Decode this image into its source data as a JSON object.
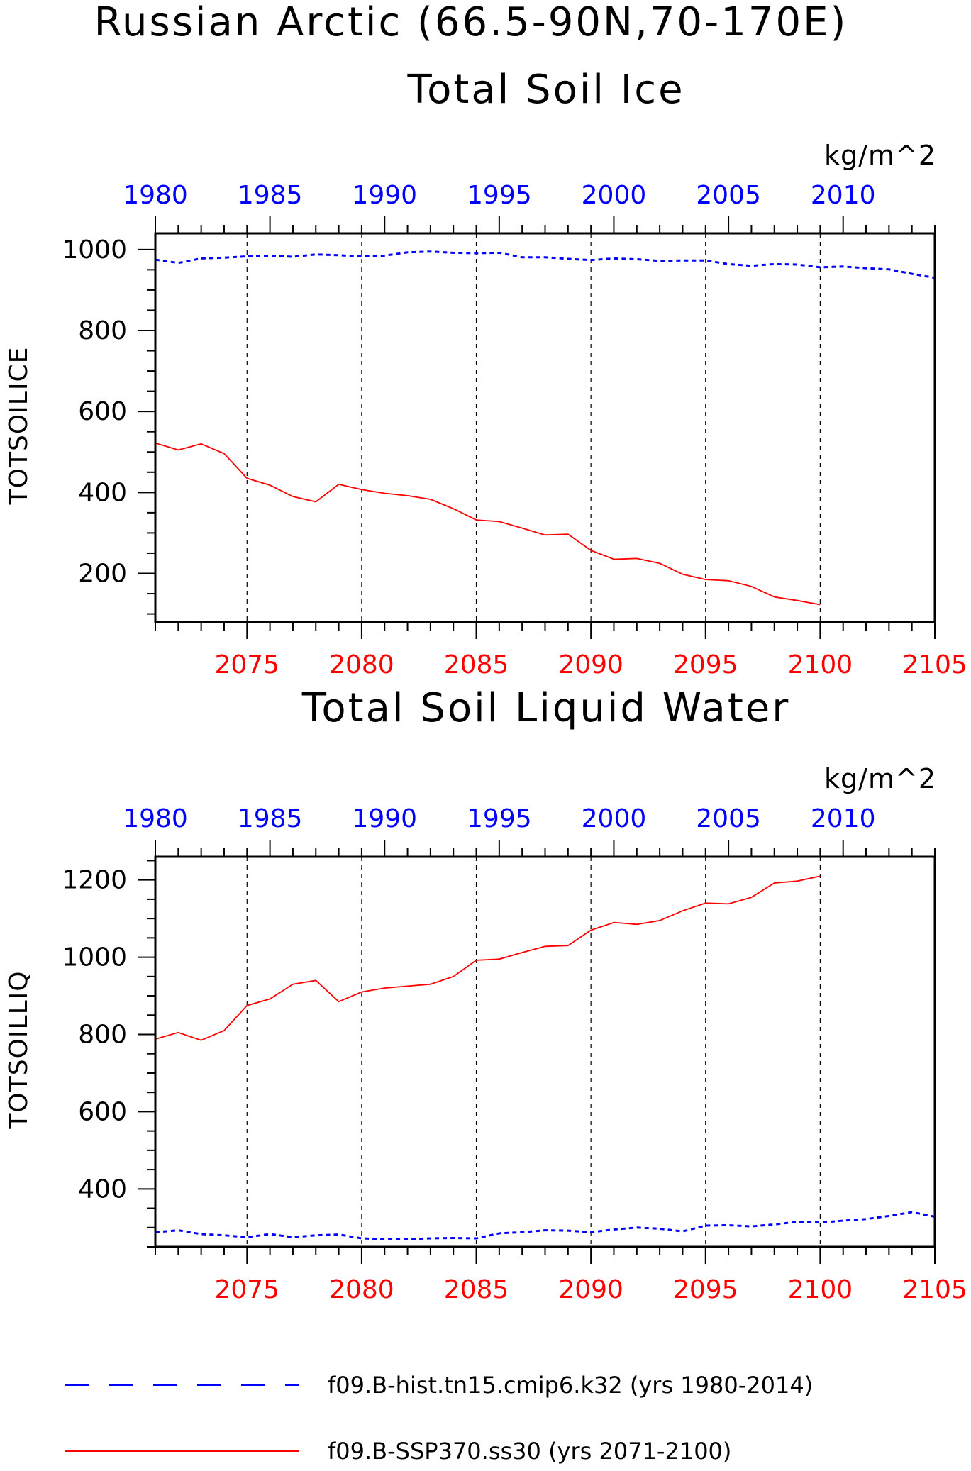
{
  "title_line1": "Russian Arctic (66.5-90N,70-170E)",
  "colors": {
    "hist": "#0000ff",
    "ssp": "#ff0000",
    "axis": "#000000",
    "grid": "#000000"
  },
  "legend": [
    {
      "label": "f09.B-hist.tn15.cmip6.k32 (yrs 1980-2014)",
      "color": "#0000ff",
      "style": "dashed"
    },
    {
      "label": "f09.B-SSP370.ss30 (yrs 2071-2100)",
      "color": "#ff0000",
      "style": "solid"
    }
  ],
  "chart_data": [
    {
      "type": "line",
      "title": "Total Soil Ice",
      "ylabel": "TOTSOILICE",
      "unit": "kg/m^2",
      "ylim": [
        80,
        1040
      ],
      "yticks": [
        200,
        400,
        600,
        800,
        1000
      ],
      "top_axis": {
        "range": [
          1980,
          2014
        ],
        "ticks": [
          1980,
          1985,
          1990,
          1995,
          2000,
          2005,
          2010
        ],
        "color": "#0000ff"
      },
      "bottom_axis": {
        "range": [
          2071,
          2105
        ],
        "ticks": [
          2075,
          2080,
          2085,
          2090,
          2095,
          2100,
          2105
        ],
        "color": "#ff0000"
      },
      "grid": "vertical dashed at bottom-axis ticks 2075-2100",
      "series": [
        {
          "name": "f09.B-hist.tn15.cmip6.k32",
          "axis": "top",
          "x": [
            1980,
            1981,
            1982,
            1983,
            1984,
            1985,
            1986,
            1987,
            1988,
            1989,
            1990,
            1991,
            1992,
            1993,
            1994,
            1995,
            1996,
            1997,
            1998,
            1999,
            2000,
            2001,
            2002,
            2003,
            2004,
            2005,
            2006,
            2007,
            2008,
            2009,
            2010,
            2011,
            2012,
            2013,
            2014
          ],
          "values": [
            975,
            967,
            978,
            980,
            983,
            985,
            982,
            988,
            986,
            983,
            985,
            993,
            995,
            992,
            991,
            992,
            981,
            981,
            977,
            974,
            978,
            976,
            972,
            973,
            973,
            964,
            960,
            964,
            963,
            956,
            958,
            954,
            951,
            940,
            930
          ]
        },
        {
          "name": "f09.B-SSP370.ss30",
          "axis": "bottom",
          "x": [
            2071,
            2072,
            2073,
            2074,
            2075,
            2076,
            2077,
            2078,
            2079,
            2080,
            2081,
            2082,
            2083,
            2084,
            2085,
            2086,
            2087,
            2088,
            2089,
            2090,
            2091,
            2092,
            2093,
            2094,
            2095,
            2096,
            2097,
            2098,
            2099,
            2100
          ],
          "values": [
            522,
            505,
            520,
            496,
            435,
            418,
            390,
            377,
            420,
            407,
            398,
            392,
            383,
            360,
            332,
            328,
            312,
            295,
            297,
            257,
            235,
            237,
            225,
            198,
            185,
            182,
            168,
            142,
            133,
            123
          ]
        }
      ]
    },
    {
      "type": "line",
      "title": "Total Soil Liquid Water",
      "ylabel": "TOTSOILLIQ",
      "unit": "kg/m^2",
      "ylim": [
        250,
        1260
      ],
      "yticks": [
        400,
        600,
        800,
        1000,
        1200
      ],
      "top_axis": {
        "range": [
          1980,
          2014
        ],
        "ticks": [
          1980,
          1985,
          1990,
          1995,
          2000,
          2005,
          2010
        ],
        "color": "#0000ff"
      },
      "bottom_axis": {
        "range": [
          2071,
          2105
        ],
        "ticks": [
          2075,
          2080,
          2085,
          2090,
          2095,
          2100,
          2105
        ],
        "color": "#ff0000"
      },
      "grid": "vertical dashed at bottom-axis ticks 2075-2100",
      "series": [
        {
          "name": "f09.B-hist.tn15.cmip6.k32",
          "axis": "top",
          "x": [
            1980,
            1981,
            1982,
            1983,
            1984,
            1985,
            1986,
            1987,
            1988,
            1989,
            1990,
            1991,
            1992,
            1993,
            1994,
            1995,
            1996,
            1997,
            1998,
            1999,
            2000,
            2001,
            2002,
            2003,
            2004,
            2005,
            2006,
            2007,
            2008,
            2009,
            2010,
            2011,
            2012,
            2013,
            2014
          ],
          "values": [
            288,
            293,
            283,
            280,
            275,
            283,
            275,
            280,
            282,
            272,
            270,
            270,
            272,
            273,
            272,
            285,
            288,
            293,
            292,
            288,
            295,
            300,
            297,
            290,
            305,
            306,
            303,
            308,
            315,
            313,
            318,
            322,
            330,
            340,
            328
          ]
        },
        {
          "name": "f09.B-SSP370.ss30",
          "axis": "bottom",
          "x": [
            2071,
            2072,
            2073,
            2074,
            2075,
            2076,
            2077,
            2078,
            2079,
            2080,
            2081,
            2082,
            2083,
            2084,
            2085,
            2086,
            2087,
            2088,
            2089,
            2090,
            2091,
            2092,
            2093,
            2094,
            2095,
            2096,
            2097,
            2098,
            2099,
            2100
          ],
          "values": [
            788,
            805,
            785,
            810,
            875,
            892,
            930,
            940,
            885,
            910,
            920,
            925,
            930,
            950,
            992,
            995,
            1012,
            1028,
            1030,
            1070,
            1090,
            1085,
            1095,
            1120,
            1140,
            1138,
            1155,
            1192,
            1197,
            1210
          ]
        }
      ]
    }
  ]
}
